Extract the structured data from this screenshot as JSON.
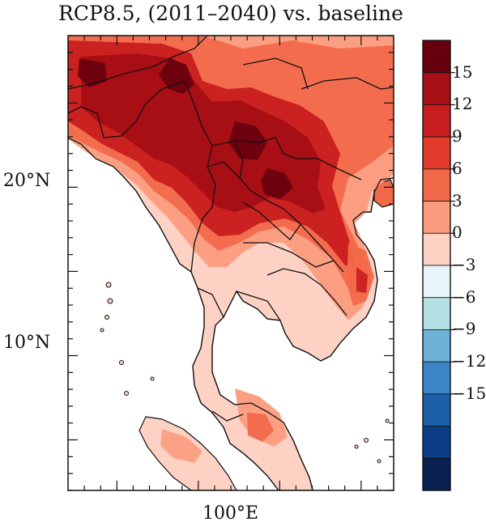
{
  "title": "RCP8.5, (2011–2040) vs. baseline",
  "map": {
    "lat_labels": [
      {
        "text": "20°N",
        "value": 20
      },
      {
        "text": "10°N",
        "value": 10
      }
    ],
    "lon_labels": [
      {
        "text": "100°E",
        "value": 100
      }
    ],
    "lat_range": [
      2,
      29
    ],
    "lon_range": [
      92,
      112
    ]
  },
  "colorbar": {
    "levels": [
      15,
      12,
      9,
      6,
      3,
      0,
      -3,
      -6,
      -9,
      -12,
      -15
    ],
    "labels": [
      "15",
      "12",
      "9",
      "6",
      "3",
      "0",
      "−3",
      "−6",
      "−9",
      "−12",
      "−15"
    ],
    "colors": [
      "#67000d",
      "#a50f15",
      "#c81d1f",
      "#e23b2c",
      "#f2694a",
      "#fb9b7e",
      "#fdd2c5",
      "#e8f6fb",
      "#b5e0e4",
      "#6fb2d8",
      "#3b86c6",
      "#1b5fa8",
      "#0b3d86",
      "#08204f"
    ]
  },
  "colors": {
    "sea": "#ffffff",
    "border": "#111111"
  }
}
